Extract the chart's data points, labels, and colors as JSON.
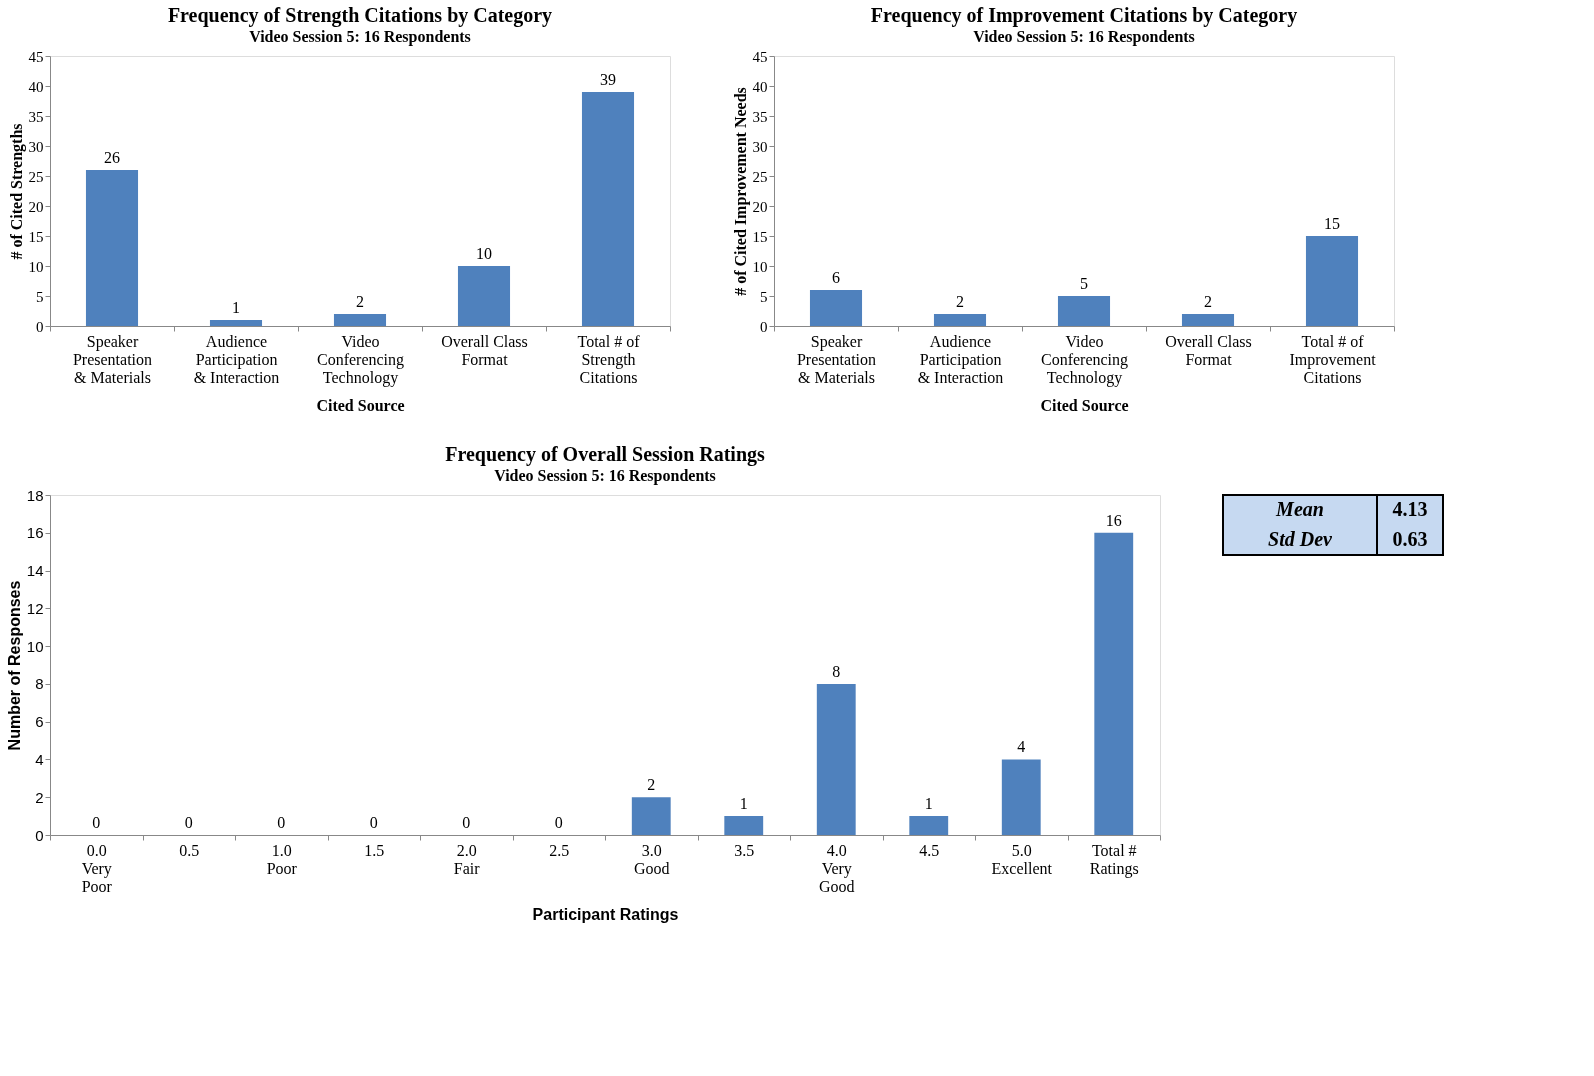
{
  "chart_data": [
    {
      "type": "bar",
      "title": "Frequency of Strength Citations by Category",
      "subtitle": "Video Session 5: 16 Respondents",
      "xlabel": "Cited Source",
      "ylabel": "# of Cited Strengths",
      "categories": [
        "Speaker\nPresentation\n& Materials",
        "Audience\nParticipation\n& Interaction",
        "Video\nConferencing\nTechnology",
        "Overall Class\nFormat",
        "Total # of\nStrength\nCitations"
      ],
      "values": [
        26,
        1,
        2,
        10,
        39
      ],
      "color": "#4f81bd",
      "ylim": [
        0,
        45
      ],
      "yticks": [
        0,
        5,
        10,
        15,
        20,
        25,
        30,
        35,
        40,
        45
      ],
      "data_labels": true
    },
    {
      "type": "bar",
      "title": "Frequency of Improvement Citations by Category",
      "subtitle": "Video Session 5: 16 Respondents",
      "xlabel": "Cited Source",
      "ylabel": "# of Cited Improvement Needs",
      "categories": [
        "Speaker\nPresentation\n& Materials",
        "Audience\nParticipation\n& Interaction",
        "Video\nConferencing\nTechnology",
        "Overall Class\nFormat",
        "Total # of\nImprovement\nCitations"
      ],
      "values": [
        6,
        2,
        5,
        2,
        15
      ],
      "color": "#4f81bd",
      "ylim": [
        0,
        45
      ],
      "yticks": [
        0,
        5,
        10,
        15,
        20,
        25,
        30,
        35,
        40,
        45
      ],
      "data_labels": true
    },
    {
      "type": "bar",
      "title": "Frequency of Overall Session Ratings",
      "subtitle": "Video Session 5: 16 Respondents",
      "xlabel": "Participant Ratings",
      "ylabel": "Number of Responses",
      "categories": [
        "0.0\nVery\nPoor",
        "0.5",
        "1.0\nPoor",
        "1.5",
        "2.0\nFair",
        "2.5",
        "3.0\nGood",
        "3.5",
        "4.0\nVery\nGood",
        "4.5",
        "5.0\nExcellent",
        "Total #\nRatings"
      ],
      "values": [
        0,
        0,
        0,
        0,
        0,
        0,
        2,
        1,
        8,
        1,
        4,
        16
      ],
      "color": "#4f81bd",
      "ylim": [
        0,
        18
      ],
      "yticks": [
        0,
        2,
        4,
        6,
        8,
        10,
        12,
        14,
        16,
        18
      ],
      "data_labels": true
    },
    {
      "type": "other",
      "categories": [
        "Mean",
        "Std Dev"
      ],
      "values": [
        4.13,
        0.63
      ],
      "value_labels": [
        "4.13",
        "0.63"
      ],
      "color": "#c6d9f1"
    }
  ]
}
